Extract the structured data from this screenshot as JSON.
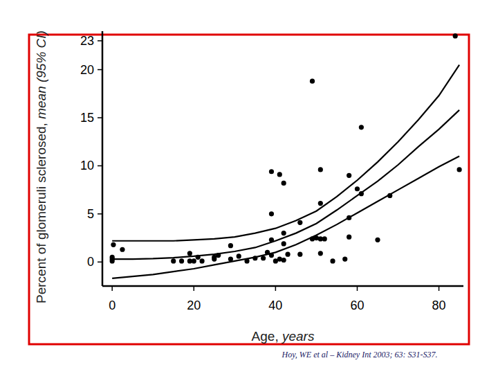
{
  "chart_data": {
    "type": "scatter",
    "y_label": "Percent of glomeruli sclerosed,",
    "y_label_emphasis": "mean (95% CI)",
    "x_label": "Age,",
    "x_label_emphasis": "years",
    "source": "Hoy, WE et al – Kidney Int 2003; 63: S31-S37.",
    "xlim": [
      -2.4,
      86
    ],
    "xticks": [
      0,
      20,
      40,
      60,
      80
    ],
    "ylim": [
      -2.5,
      24
    ],
    "yticks": [
      0,
      5,
      10,
      15,
      20,
      23
    ],
    "grid": false,
    "series": [
      {
        "type": "scatter",
        "marker": "circle",
        "color": "#000000",
        "x": [
          0,
          0,
          0,
          0.3,
          2.5,
          15,
          17,
          19,
          19,
          20,
          21,
          22,
          25,
          25,
          26,
          29,
          29,
          31,
          33,
          35,
          37,
          38,
          39,
          39,
          39,
          39,
          40,
          41,
          41,
          42,
          42,
          42,
          42,
          43,
          46,
          46,
          49,
          49,
          50,
          51,
          51,
          51,
          51,
          52,
          54,
          57,
          58,
          58,
          58,
          60,
          61,
          61,
          65,
          68,
          84,
          85
        ],
        "values": [
          0.1,
          0.3,
          0.5,
          1.8,
          1.3,
          0.1,
          0.1,
          0.1,
          0.9,
          0.1,
          0.5,
          0.1,
          0.3,
          0.5,
          0.7,
          0.3,
          1.7,
          0.6,
          0.1,
          0.4,
          0.4,
          1.0,
          0.7,
          2.3,
          5.0,
          9.4,
          0.1,
          0.3,
          9.1,
          0.2,
          1.9,
          3.0,
          8.2,
          0.8,
          0.8,
          4.1,
          18.8,
          2.4,
          2.5,
          0.9,
          2.4,
          6.1,
          9.6,
          2.4,
          0.1,
          0.3,
          2.6,
          4.6,
          9.0,
          7.6,
          7.1,
          14.0,
          2.3,
          6.9,
          23.5,
          9.6
        ]
      },
      {
        "type": "line",
        "line_style": "solid",
        "color": "#000000",
        "x": [
          0,
          5,
          10,
          15,
          20,
          25,
          30,
          35,
          40,
          45,
          50,
          55,
          60,
          65,
          70,
          75,
          80,
          85
        ],
        "values": [
          2.2,
          2.2,
          2.2,
          2.2,
          2.3,
          2.4,
          2.6,
          3.0,
          3.5,
          4.3,
          5.3,
          6.8,
          8.5,
          10.4,
          12.5,
          14.8,
          17.3,
          20.5
        ]
      },
      {
        "type": "line",
        "line_style": "solid",
        "color": "#000000",
        "x": [
          0,
          5,
          10,
          15,
          20,
          25,
          30,
          35,
          40,
          45,
          50,
          55,
          60,
          65,
          70,
          75,
          80,
          85
        ],
        "values": [
          0.3,
          0.3,
          0.35,
          0.45,
          0.6,
          0.8,
          1.1,
          1.5,
          2.2,
          3.0,
          4.0,
          5.4,
          6.9,
          8.4,
          10.1,
          12.0,
          13.8,
          15.8
        ]
      },
      {
        "type": "line",
        "line_style": "solid",
        "color": "#000000",
        "x": [
          0,
          5,
          10,
          15,
          20,
          25,
          30,
          35,
          40,
          45,
          50,
          55,
          60,
          65,
          70,
          75,
          80,
          85
        ],
        "values": [
          -1.7,
          -1.5,
          -1.3,
          -1.0,
          -0.7,
          -0.3,
          0.1,
          0.5,
          1.0,
          1.8,
          2.8,
          3.9,
          5.1,
          6.3,
          7.5,
          8.7,
          9.9,
          11.0
        ]
      }
    ]
  }
}
